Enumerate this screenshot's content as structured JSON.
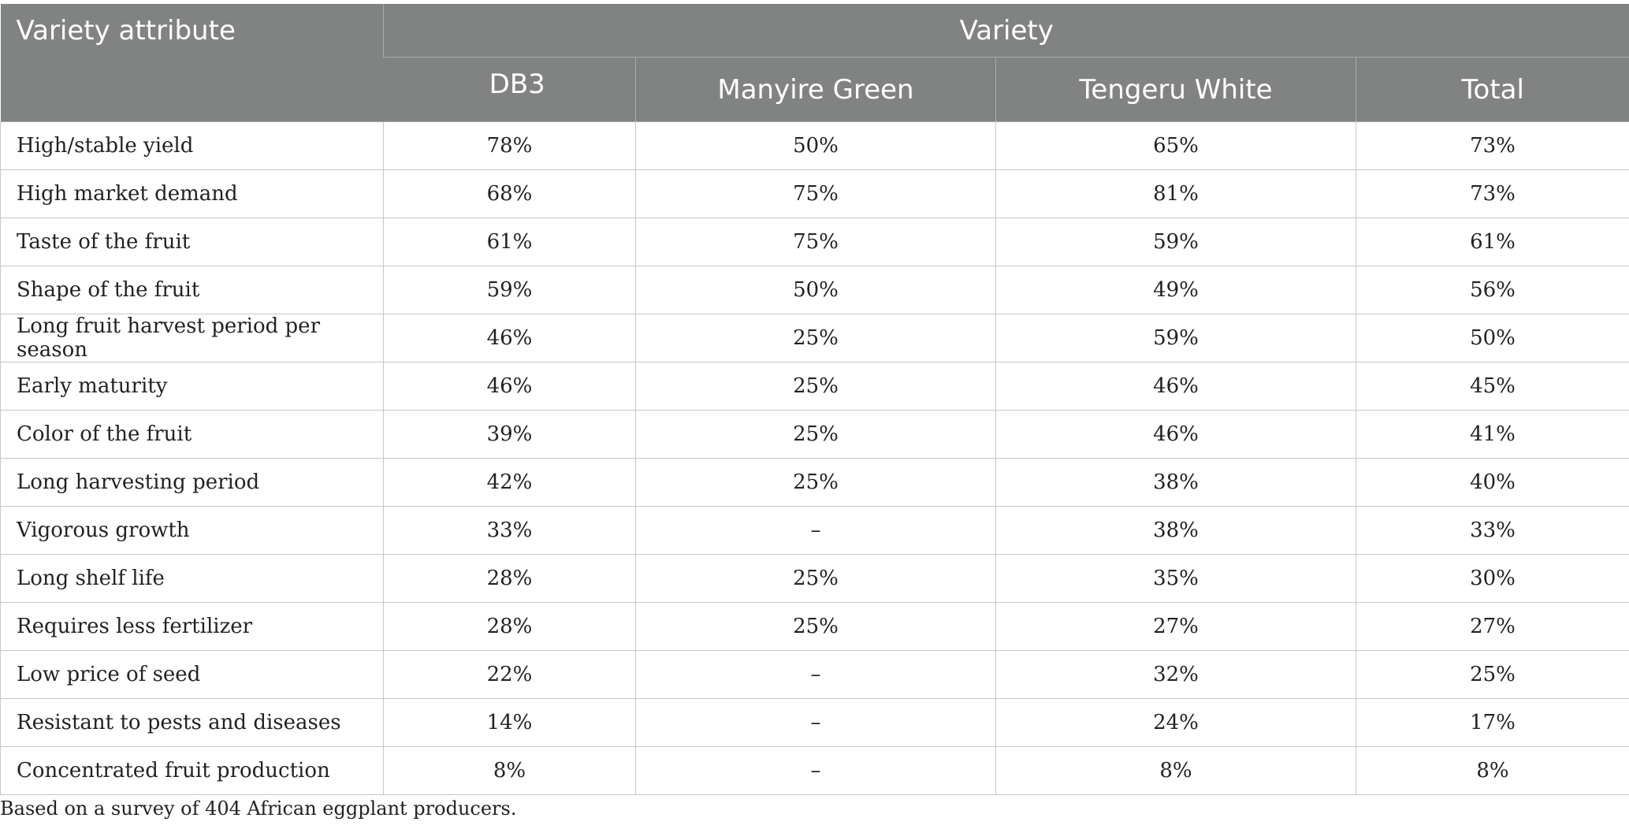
{
  "table": {
    "first_header": "Variety attribute",
    "group_header": "Variety",
    "columns": [
      "DB3",
      "Manyire Green",
      "Tengeru White",
      "Total"
    ],
    "rows": [
      {
        "attribute": "High/stable yield",
        "values": [
          "78%",
          "50%",
          "65%",
          "73%"
        ]
      },
      {
        "attribute": "High market demand",
        "values": [
          "68%",
          "75%",
          "81%",
          "73%"
        ]
      },
      {
        "attribute": "Taste of the fruit",
        "values": [
          "61%",
          "75%",
          "59%",
          "61%"
        ]
      },
      {
        "attribute": "Shape of the fruit",
        "values": [
          "59%",
          "50%",
          "49%",
          "56%"
        ]
      },
      {
        "attribute": "Long fruit harvest period per season",
        "values": [
          "46%",
          "25%",
          "59%",
          "50%"
        ]
      },
      {
        "attribute": "Early maturity",
        "values": [
          "46%",
          "25%",
          "46%",
          "45%"
        ]
      },
      {
        "attribute": "Color of the fruit",
        "values": [
          "39%",
          "25%",
          "46%",
          "41%"
        ]
      },
      {
        "attribute": "Long harvesting period",
        "values": [
          "42%",
          "25%",
          "38%",
          "40%"
        ]
      },
      {
        "attribute": "Vigorous growth",
        "values": [
          "33%",
          "–",
          "38%",
          "33%"
        ]
      },
      {
        "attribute": "Long shelf life",
        "values": [
          "28%",
          "25%",
          "35%",
          "30%"
        ]
      },
      {
        "attribute": "Requires less fertilizer",
        "values": [
          "28%",
          "25%",
          "27%",
          "27%"
        ]
      },
      {
        "attribute": "Low price of seed",
        "values": [
          "22%",
          "–",
          "32%",
          "25%"
        ]
      },
      {
        "attribute": "Resistant to pests and diseases",
        "values": [
          "14%",
          "–",
          "24%",
          "17%"
        ]
      },
      {
        "attribute": "Concentrated fruit production",
        "values": [
          "8%",
          "–",
          "8%",
          "8%"
        ]
      }
    ]
  },
  "footnote": "Based on a survey of 404 African eggplant producers.",
  "colors": {
    "header_bg": "#818282",
    "header_text": "#ffffff"
  }
}
